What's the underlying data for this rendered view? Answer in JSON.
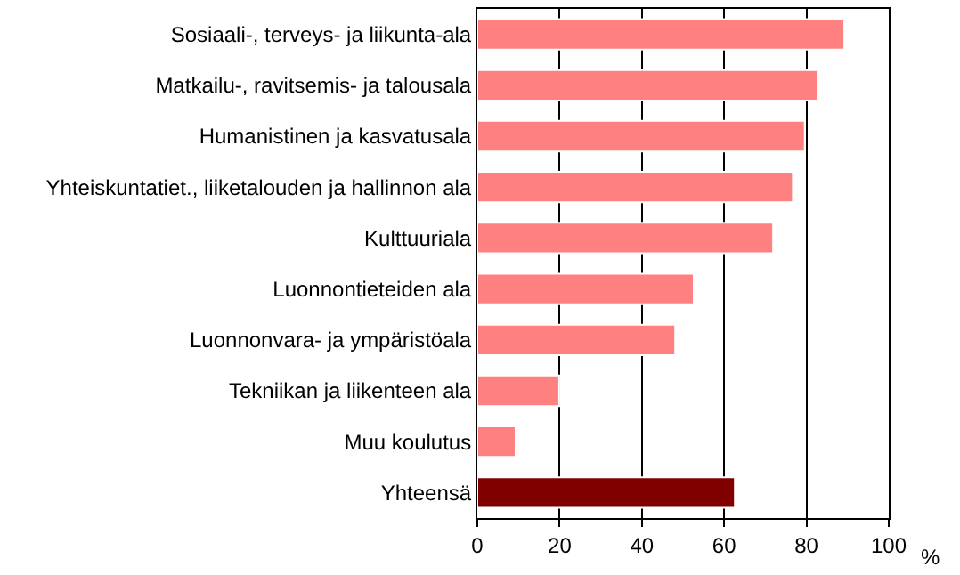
{
  "chart_data": {
    "type": "bar",
    "orientation": "horizontal",
    "categories": [
      "Sosiaali-, terveys- ja liikunta-ala",
      "Matkailu-, ravitsemis- ja talousala",
      "Humanistinen ja kasvatusala",
      "Yhteiskuntatiet., liiketalouden ja hallinnon ala",
      "Kulttuuriala",
      "Luonnontieteiden ala",
      "Luonnonvara- ja ympäristöala",
      "Tekniikan ja liikenteen ala",
      "Muu koulutus",
      "Yhteensä"
    ],
    "values": [
      89.2,
      82.7,
      79.6,
      76.7,
      71.9,
      52.6,
      48.1,
      19.9,
      9.3,
      62.6
    ],
    "colors": [
      "#ff8080",
      "#ff8080",
      "#ff8080",
      "#ff8080",
      "#ff8080",
      "#ff8080",
      "#ff8080",
      "#ff8080",
      "#ff8080",
      "#800000"
    ],
    "xlim": [
      0,
      100
    ],
    "xticks": [
      0,
      20,
      40,
      60,
      80,
      100
    ],
    "xlabel": "%",
    "grid": "x",
    "legend": false
  }
}
